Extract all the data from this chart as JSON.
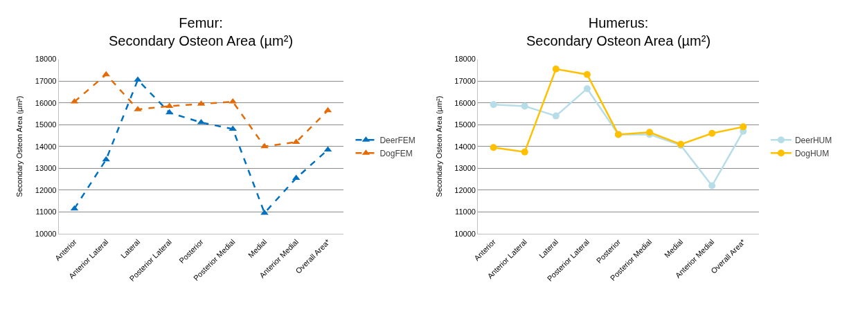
{
  "chart_data": [
    {
      "type": "line",
      "title": "Femur:\nSecondary Osteon Area (µm²)",
      "ylabel": "Secondary Osteon Area (µm²)",
      "categories": [
        "Anterior",
        "Anterior Lateral",
        "Lateral",
        "Posterior Lateral",
        "Posterior",
        "Posterior Medial",
        "Medial",
        "Anterior Medial",
        "Overall Area*"
      ],
      "series": [
        {
          "name": "DeerFEM",
          "color": "#0070c0",
          "marker": "triangle",
          "line_style": "dashed",
          "values": [
            11150,
            13400,
            17050,
            15550,
            15100,
            14800,
            10950,
            12550,
            13850
          ]
        },
        {
          "name": "DogFEM",
          "color": "#e36c09",
          "marker": "triangle",
          "line_style": "dashed",
          "values": [
            16050,
            17300,
            15700,
            15850,
            15950,
            16050,
            14000,
            14200,
            15650
          ]
        }
      ],
      "ylim": [
        10000,
        18000
      ],
      "yticks": [
        10000,
        11000,
        12000,
        13000,
        14000,
        15000,
        16000,
        17000,
        18000
      ],
      "grid": "y",
      "legend": "right"
    },
    {
      "type": "line",
      "title": "Humerus:\nSecondary Osteon Area (µm²)",
      "ylabel": "Secondary Osteon Area (µm²)",
      "categories": [
        "Anterior",
        "Anterior Lateral",
        "Lateral",
        "Posterior Lateral",
        "Posterior",
        "Posterior Medial",
        "Medial",
        "Anterior Medial",
        "Overall Area*"
      ],
      "series": [
        {
          "name": "DeerHUM",
          "color": "#b7dde8",
          "marker": "circle",
          "line_style": "solid",
          "values": [
            15920,
            15850,
            15400,
            16650,
            14550,
            14550,
            14050,
            12200,
            14700
          ]
        },
        {
          "name": "DogHUM",
          "color": "#ffc000",
          "marker": "circle",
          "line_style": "solid",
          "values": [
            13950,
            13750,
            17550,
            17300,
            14550,
            14650,
            14100,
            14600,
            14900
          ]
        }
      ],
      "ylim": [
        10000,
        18000
      ],
      "yticks": [
        10000,
        11000,
        12000,
        13000,
        14000,
        15000,
        16000,
        17000,
        18000
      ],
      "grid": "y",
      "legend": "right"
    }
  ]
}
